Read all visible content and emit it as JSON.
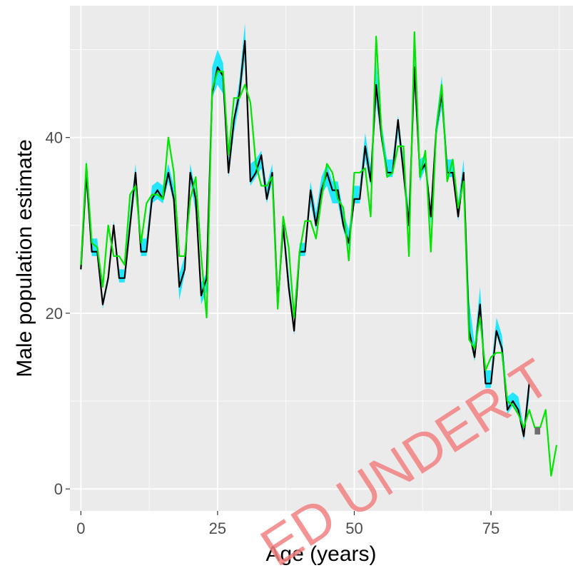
{
  "chart_data": {
    "type": "line",
    "title": "",
    "xlabel": "Age (years)",
    "ylabel": "Male population estimate",
    "xlim": [
      -2,
      90
    ],
    "ylim": [
      -2.5,
      55
    ],
    "x_ticks": [
      0,
      25,
      50,
      75
    ],
    "x_tick_labels": [
      "0",
      "25",
      "50",
      "75"
    ],
    "y_ticks": [
      0,
      20,
      40
    ],
    "y_tick_labels": [
      "0",
      "20",
      "40"
    ],
    "grid": true,
    "legend": "none",
    "series": [
      {
        "kind": "band",
        "color": "#00e5ff",
        "x": [
          0,
          1,
          2,
          3,
          4,
          5,
          6,
          7,
          8,
          9,
          10,
          11,
          12,
          13,
          14,
          15,
          16,
          17,
          18,
          19,
          20,
          21,
          22,
          23,
          24,
          25,
          26,
          27,
          28,
          29,
          30,
          31,
          32,
          33,
          34,
          35,
          36,
          37,
          38,
          39,
          40,
          41,
          42,
          43,
          44,
          45,
          46,
          47,
          48,
          49,
          50,
          51,
          52,
          53,
          54,
          55,
          56,
          57,
          58,
          59,
          60,
          61,
          62,
          63,
          64,
          65,
          66,
          67,
          68,
          69,
          70,
          71,
          72,
          73,
          74,
          75,
          76,
          77,
          78,
          79,
          80,
          81,
          82
        ],
        "lower": [
          24.5,
          34.5,
          26.5,
          26.5,
          20.5,
          23.5,
          29.5,
          23.5,
          23.5,
          29.5,
          34.5,
          26.5,
          26.5,
          32.5,
          33.0,
          32.5,
          35.0,
          32.5,
          21.5,
          24.5,
          35.0,
          31.5,
          21.0,
          22.5,
          44.5,
          46.0,
          45.0,
          35.5,
          40.5,
          44.0,
          49.0,
          34.5,
          35.5,
          36.5,
          32.5,
          35.0,
          21.0,
          29.0,
          22.5,
          17.5,
          26.5,
          26.5,
          32.5,
          29.5,
          33.5,
          34.5,
          32.5,
          32.5,
          29.5,
          27.5,
          32.5,
          32.5,
          37.5,
          34.5,
          44.0,
          39.5,
          35.5,
          35.5,
          40.5,
          35.5,
          29.5,
          46.0,
          35.0,
          36.5,
          30.0,
          40.0,
          43.5,
          35.5,
          35.5,
          30.5,
          35.0,
          17.5,
          14.5,
          20.0,
          11.5,
          11.5,
          17.5,
          15.5,
          8.5,
          9.5,
          8.5,
          5.5,
          10.5
        ],
        "upper": [
          25.5,
          37.5,
          28.5,
          28.5,
          21.5,
          24.5,
          30.5,
          25.0,
          25.0,
          31.5,
          37.0,
          28.5,
          28.5,
          34.5,
          35.0,
          34.5,
          37.0,
          34.5,
          24.5,
          26.5,
          37.0,
          34.0,
          23.5,
          24.5,
          48.0,
          50.0,
          48.5,
          37.5,
          42.5,
          46.5,
          53.0,
          37.0,
          37.5,
          38.5,
          34.5,
          37.0,
          22.0,
          31.0,
          24.5,
          18.5,
          28.0,
          28.0,
          35.0,
          31.5,
          35.5,
          37.0,
          35.0,
          35.0,
          31.5,
          29.5,
          34.5,
          34.5,
          40.5,
          36.5,
          48.5,
          41.5,
          37.5,
          37.5,
          42.5,
          37.5,
          31.5,
          49.0,
          37.5,
          38.0,
          32.0,
          42.0,
          47.0,
          37.5,
          37.5,
          32.5,
          37.5,
          21.5,
          16.5,
          23.0,
          13.5,
          13.5,
          19.5,
          17.5,
          10.5,
          11.0,
          10.5,
          7.0,
          13.0
        ]
      },
      {
        "kind": "line",
        "color": "#000000",
        "x": [
          0,
          1,
          2,
          3,
          4,
          5,
          6,
          7,
          8,
          9,
          10,
          11,
          12,
          13,
          14,
          15,
          16,
          17,
          18,
          19,
          20,
          21,
          22,
          23,
          24,
          25,
          26,
          27,
          28,
          29,
          30,
          31,
          32,
          33,
          34,
          35,
          36,
          37,
          38,
          39,
          40,
          41,
          42,
          43,
          44,
          45,
          46,
          47,
          48,
          49,
          50,
          51,
          52,
          53,
          54,
          55,
          56,
          57,
          58,
          59,
          60,
          61,
          62,
          63,
          64,
          65,
          66,
          67,
          68,
          69,
          70,
          71,
          72,
          73,
          74,
          75,
          76,
          77,
          78,
          79,
          80,
          81,
          82
        ],
        "y": [
          25,
          36,
          27,
          27,
          21,
          24,
          30,
          24,
          24,
          30,
          36,
          27,
          27,
          33,
          34,
          33,
          36,
          33,
          23,
          25,
          36,
          33,
          22,
          24,
          45,
          48,
          47,
          36,
          42,
          45,
          51,
          35,
          36,
          38,
          33,
          36,
          21,
          30,
          23,
          18,
          27,
          27,
          34,
          30,
          34,
          36,
          34,
          34,
          30,
          28,
          33,
          33,
          39,
          35,
          46,
          40,
          36,
          36,
          42,
          36,
          30,
          48,
          36,
          37,
          31,
          41,
          45,
          36,
          36,
          31,
          36,
          18,
          15,
          21,
          12,
          12,
          18,
          16,
          9,
          10,
          9,
          6,
          12
        ]
      },
      {
        "kind": "line",
        "color": "#00e600",
        "x": [
          0,
          1,
          2,
          3,
          4,
          5,
          6,
          7,
          8,
          9,
          10,
          11,
          12,
          13,
          14,
          15,
          16,
          17,
          18,
          19,
          20,
          21,
          22,
          23,
          24,
          25,
          26,
          27,
          28,
          29,
          30,
          31,
          32,
          33,
          34,
          35,
          36,
          37,
          38,
          39,
          40,
          41,
          42,
          43,
          44,
          45,
          46,
          47,
          48,
          49,
          50,
          51,
          52,
          53,
          54,
          55,
          56,
          57,
          58,
          59,
          60,
          61,
          62,
          63,
          64,
          65,
          66,
          67,
          68,
          69,
          70,
          71,
          72,
          73,
          74,
          75,
          76,
          77,
          78,
          79,
          80,
          81,
          82,
          83,
          84,
          85,
          86,
          87
        ],
        "y": [
          25.5,
          37,
          28,
          27.5,
          23,
          30,
          26.5,
          26.5,
          25.5,
          33.5,
          34.5,
          28,
          32.5,
          33.5,
          33.5,
          33,
          40,
          36,
          26.5,
          26.5,
          33,
          35.5,
          26.5,
          19.5,
          45.5,
          47.5,
          47.5,
          38,
          44.5,
          44.5,
          46,
          44,
          37,
          34.5,
          34.5,
          35.5,
          20.5,
          31,
          27.5,
          19.5,
          27,
          30.5,
          30.5,
          28.5,
          33,
          37,
          36,
          33,
          32,
          26,
          36,
          36,
          36.5,
          31,
          51.5,
          40.5,
          35.5,
          36,
          39,
          39,
          26.5,
          52,
          35.5,
          38.5,
          27,
          41,
          46,
          35,
          37.5,
          32,
          35,
          17,
          16,
          19.5,
          13.5,
          15,
          15.5,
          15.5,
          10,
          9.5,
          8.5,
          7,
          9,
          7,
          7,
          9,
          1.5,
          5
        ]
      },
      {
        "kind": "bar-step",
        "color": "#6e6e6e",
        "x": [
          83,
          84
        ],
        "y": [
          7,
          6.2
        ]
      }
    ]
  },
  "watermark": {
    "text": "ED UNDER T",
    "color": "#f28080"
  }
}
